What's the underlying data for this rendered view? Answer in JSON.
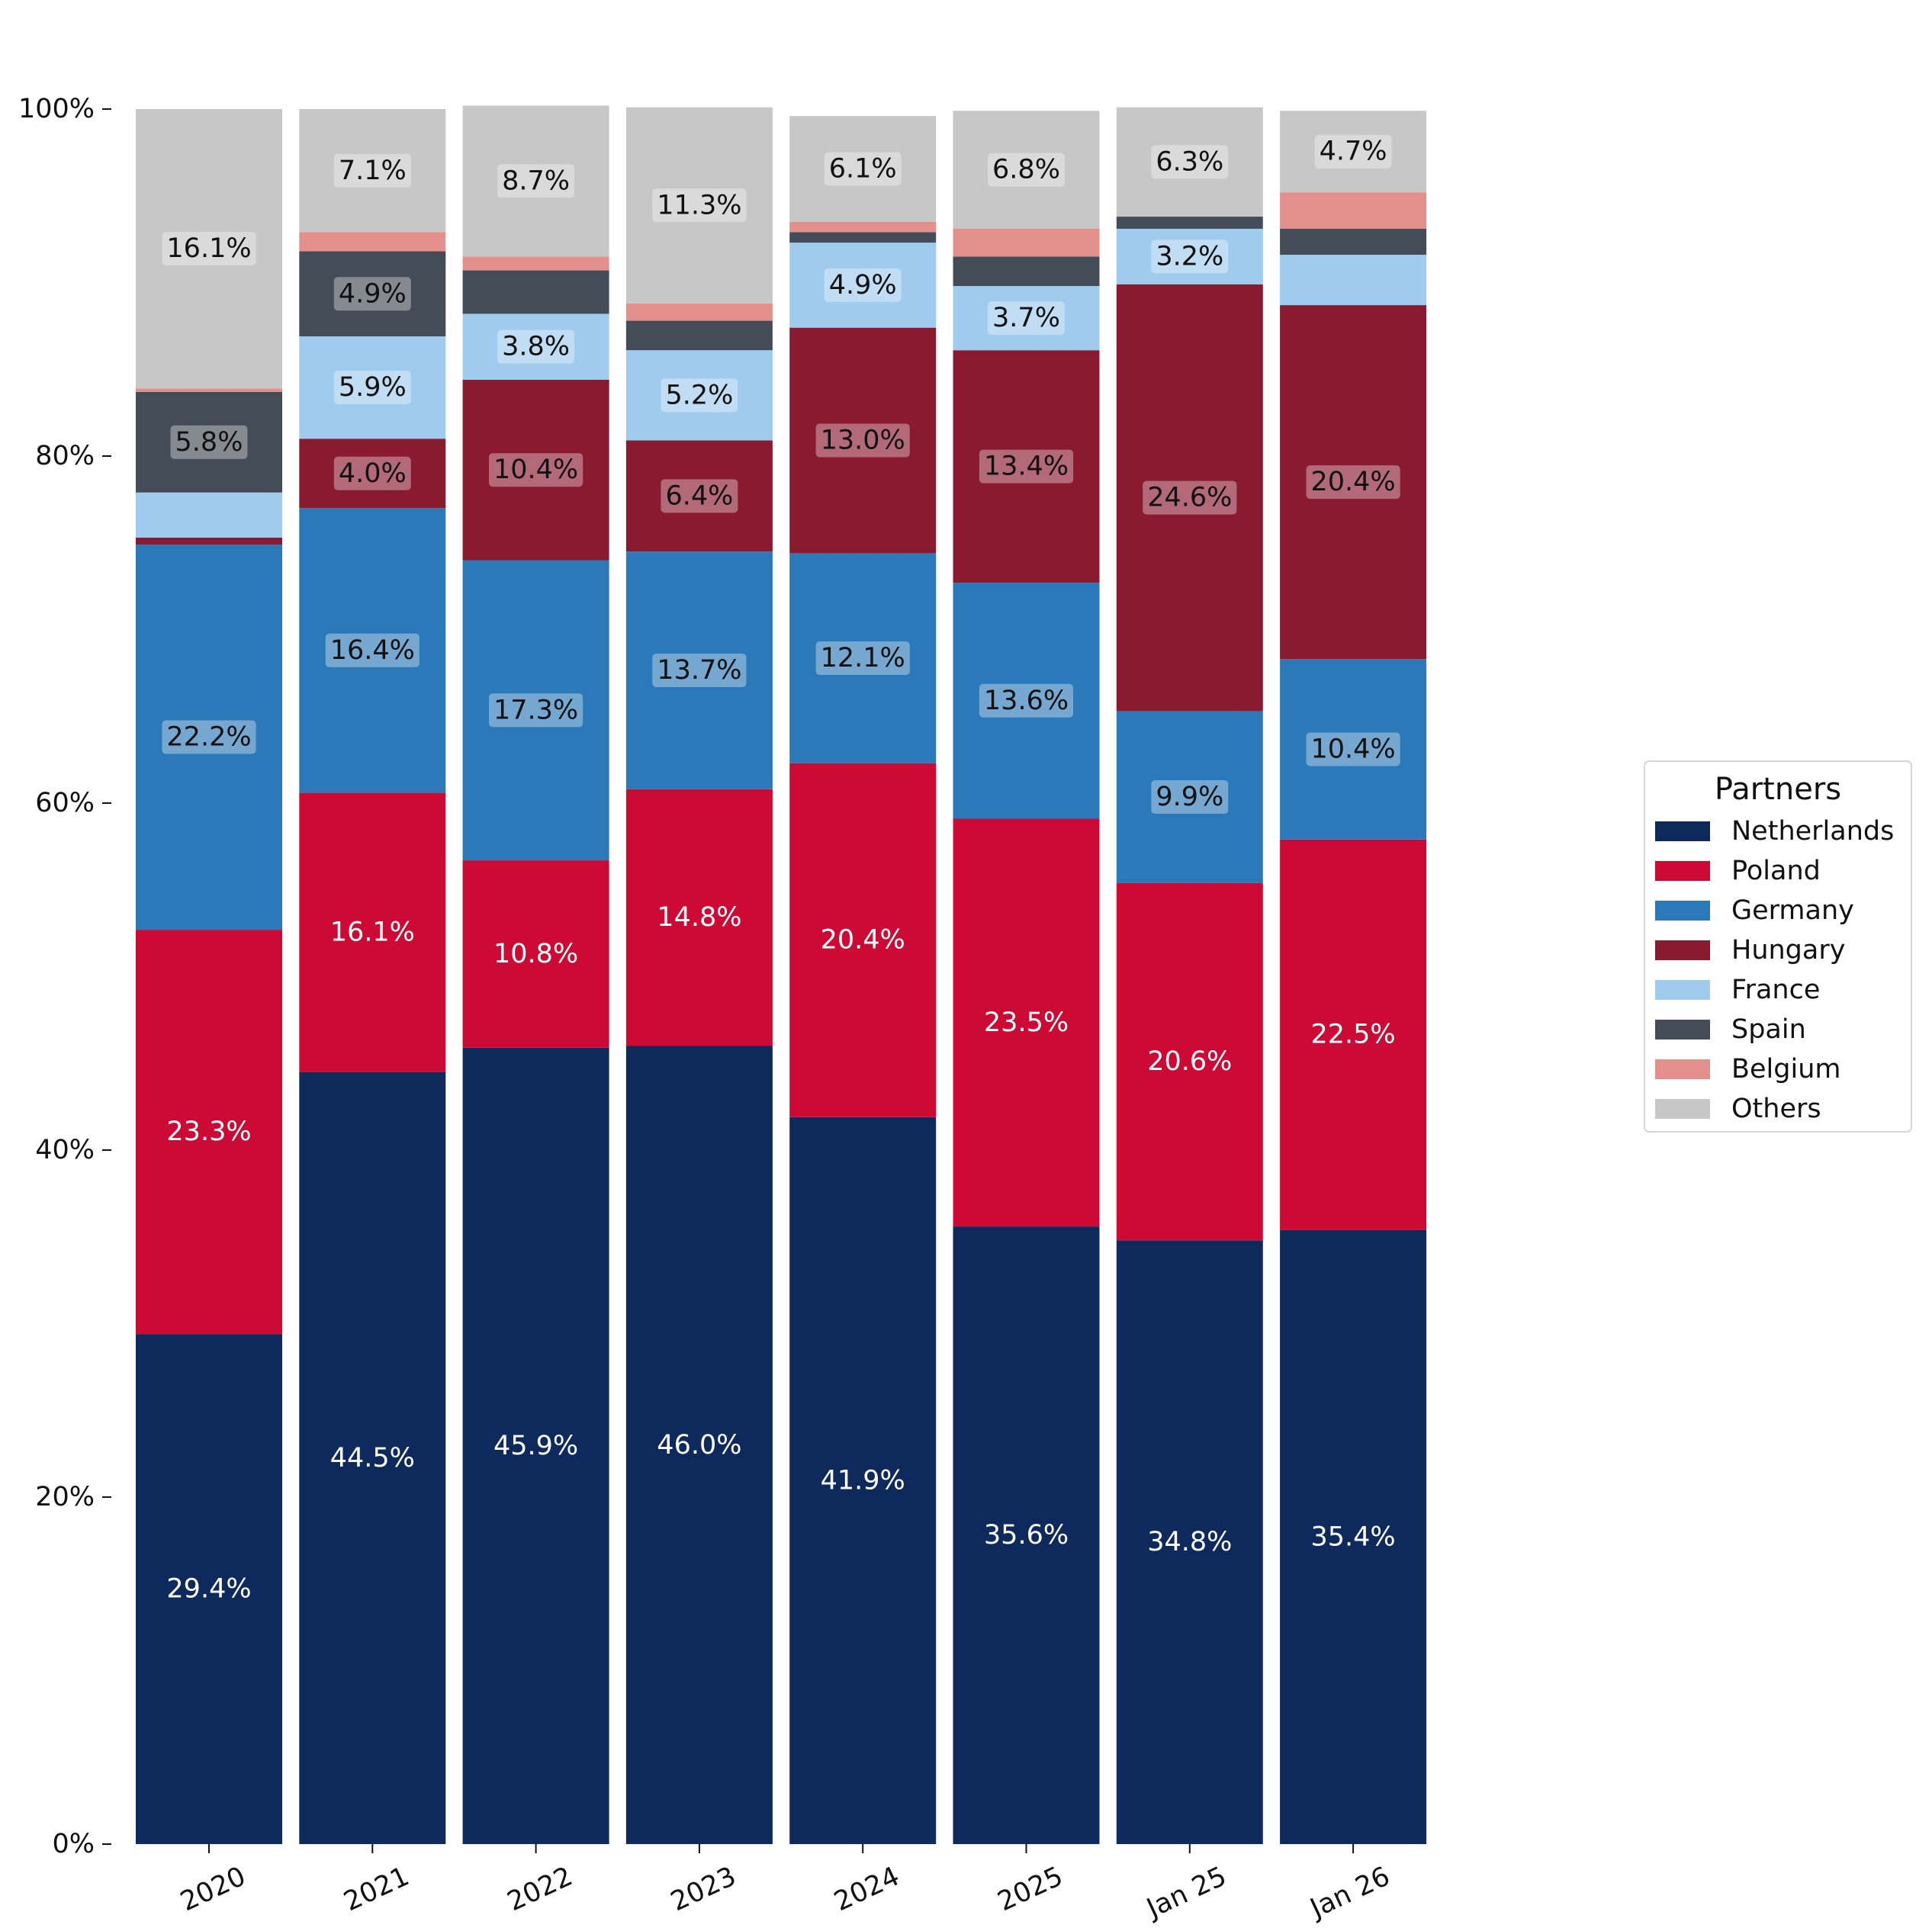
{
  "chart_data": {
    "type": "bar",
    "stacked": true,
    "categories": [
      "2020",
      "2021",
      "2022",
      "2023",
      "2024",
      "2025",
      "Jan 25",
      "Jan 26"
    ],
    "ylim": [
      0,
      100
    ],
    "yticks": [
      "0%",
      "20%",
      "40%",
      "60%",
      "80%",
      "100%"
    ],
    "ytick_values": [
      0,
      20,
      40,
      60,
      80,
      100
    ],
    "legend": {
      "title": "Partners",
      "placement": "right"
    },
    "label_threshold": 3,
    "series": [
      {
        "name": "Netherlands",
        "color": "#0e2a5c",
        "label_color": "#ffffff",
        "values": [
          29.4,
          44.5,
          45.9,
          46.0,
          41.9,
          35.6,
          34.8,
          35.4
        ],
        "labels": [
          "29.4%",
          "44.5%",
          "45.9%",
          "46.0%",
          "41.9%",
          "35.6%",
          "34.8%",
          "35.4%"
        ]
      },
      {
        "name": "Poland",
        "color": "#cc0a34",
        "label_color": "#ffffff",
        "values": [
          23.3,
          16.1,
          10.8,
          14.8,
          20.4,
          23.5,
          20.6,
          22.5
        ],
        "labels": [
          "23.3%",
          "16.1%",
          "10.8%",
          "14.8%",
          "20.4%",
          "23.5%",
          "20.6%",
          "22.5%"
        ]
      },
      {
        "name": "Germany",
        "color": "#2b79b8",
        "label_color": "#111111",
        "values": [
          22.2,
          16.4,
          17.3,
          13.7,
          12.1,
          13.6,
          9.9,
          10.4
        ],
        "labels": [
          "22.2%",
          "16.4%",
          "17.3%",
          "13.7%",
          "12.1%",
          "13.6%",
          "9.9%",
          "10.4%"
        ]
      },
      {
        "name": "Hungary",
        "color": "#8a1a30",
        "label_color": "#111111",
        "values": [
          0.4,
          4.0,
          10.4,
          6.4,
          13.0,
          13.4,
          24.6,
          20.4
        ],
        "labels": [
          "",
          "4.0%",
          "10.4%",
          "6.4%",
          "13.0%",
          "13.4%",
          "24.6%",
          "20.4%"
        ]
      },
      {
        "name": "France",
        "color": "#9fcbef",
        "label_color": "#111111",
        "values": [
          2.6,
          5.9,
          3.8,
          5.2,
          4.9,
          3.7,
          3.2,
          2.9
        ],
        "labels": [
          "",
          "5.9%",
          "3.8%",
          "5.2%",
          "4.9%",
          "3.7%",
          "3.2%",
          ""
        ]
      },
      {
        "name": "Spain",
        "color": "#444c57",
        "label_color": "#111111",
        "values": [
          5.8,
          4.9,
          2.5,
          1.7,
          0.6,
          1.7,
          0.7,
          1.5
        ],
        "labels": [
          "5.8%",
          "4.9%",
          "",
          "",
          "",
          "",
          "",
          ""
        ]
      },
      {
        "name": "Belgium",
        "color": "#e38f8c",
        "label_color": "#111111",
        "values": [
          0.2,
          1.1,
          0.8,
          1.0,
          0.6,
          1.6,
          0.0,
          2.1
        ],
        "labels": [
          "",
          "",
          "",
          "",
          "",
          "",
          "",
          ""
        ]
      },
      {
        "name": "Others",
        "color": "#c7c7c7",
        "label_color": "#111111",
        "values": [
          16.1,
          7.1,
          8.7,
          11.3,
          6.1,
          6.8,
          6.3,
          4.7
        ],
        "labels": [
          "16.1%",
          "7.1%",
          "8.7%",
          "11.3%",
          "6.1%",
          "6.8%",
          "6.3%",
          "4.7%"
        ]
      }
    ]
  }
}
